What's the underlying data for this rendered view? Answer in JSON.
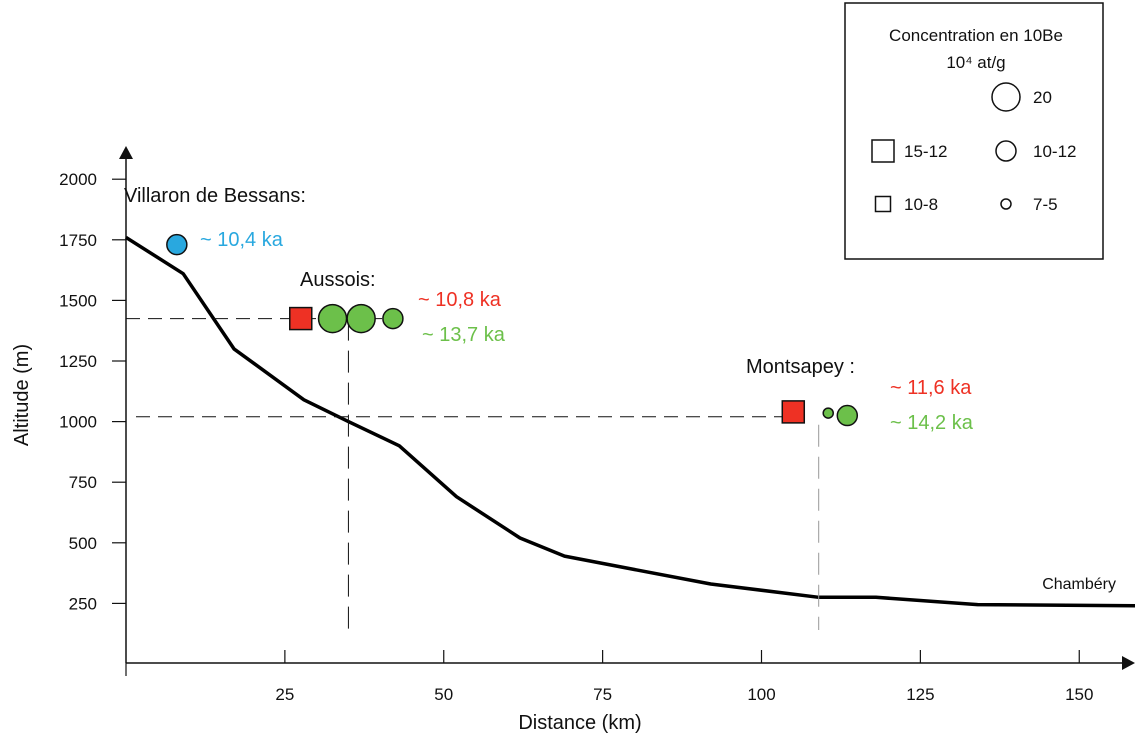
{
  "chart_data": {
    "type": "line",
    "xlabel": "Distance (km)",
    "ylabel": "Altitude (m)",
    "xlim": [
      0,
      160
    ],
    "ylim": [
      0,
      2000
    ],
    "x_ticks": [
      25,
      50,
      75,
      100,
      125,
      150
    ],
    "y_ticks": [
      250,
      500,
      750,
      1000,
      1250,
      1500,
      1750,
      2000
    ],
    "profile": {
      "x": [
        0,
        9,
        17,
        28,
        35,
        43,
        52,
        62,
        69,
        80,
        92,
        109,
        118,
        134,
        160
      ],
      "y": [
        1760,
        1610,
        1300,
        1090,
        1000,
        900,
        690,
        520,
        445,
        390,
        330,
        275,
        275,
        245,
        240
      ]
    },
    "end_label": "Chambéry",
    "sites": [
      {
        "name": "Villaron de Bessans:",
        "samples": [
          {
            "shape": "circle",
            "x": 8,
            "y": 1730,
            "color": "#29a8df",
            "size_class": "10-12"
          }
        ],
        "ages": [
          {
            "text": "~ 10,4 ka",
            "color": "#29a8df"
          }
        ]
      },
      {
        "name": "Aussois:",
        "reference": {
          "x": 35,
          "y": 1425
        },
        "samples": [
          {
            "shape": "square",
            "x": 27.5,
            "y": 1425,
            "color": "#ee3124",
            "size_class": "15-12"
          },
          {
            "shape": "circle",
            "x": 32.5,
            "y": 1425,
            "color": "#6cc04a",
            "size_class": "20"
          },
          {
            "shape": "circle",
            "x": 37,
            "y": 1425,
            "color": "#6cc04a",
            "size_class": "20"
          },
          {
            "shape": "circle",
            "x": 42,
            "y": 1425,
            "color": "#6cc04a",
            "size_class": "10-12"
          }
        ],
        "ages": [
          {
            "text": "~ 10,8 ka",
            "color": "#ee3124"
          },
          {
            "text": "~ 13,7 ka",
            "color": "#6cc04a"
          }
        ]
      },
      {
        "name": "Montsapey :",
        "reference": {
          "x": 109,
          "y": 1020
        },
        "samples": [
          {
            "shape": "square",
            "x": 105,
            "y": 1040,
            "color": "#ee3124",
            "size_class": "15-12"
          },
          {
            "shape": "circle",
            "x": 110.5,
            "y": 1035,
            "color": "#6cc04a",
            "size_class": "7-5"
          },
          {
            "shape": "circle",
            "x": 113.5,
            "y": 1025,
            "color": "#6cc04a",
            "size_class": "10-12"
          }
        ],
        "ages": [
          {
            "text": "~ 11,6 ka",
            "color": "#ee3124"
          },
          {
            "text": "~ 14,2 ka",
            "color": "#6cc04a"
          }
        ]
      }
    ],
    "legend": {
      "placement": "top-right",
      "title_line1": "Concentration en 10Be",
      "title_line2": "10⁴ at/g",
      "items": [
        {
          "shape": "circle",
          "label": "20"
        },
        {
          "shape": "square",
          "label": "15-12"
        },
        {
          "shape": "circle",
          "label": "10-12"
        },
        {
          "shape": "square",
          "label": "10-8"
        },
        {
          "shape": "circle",
          "label": "7-5"
        }
      ]
    },
    "grid": false
  }
}
